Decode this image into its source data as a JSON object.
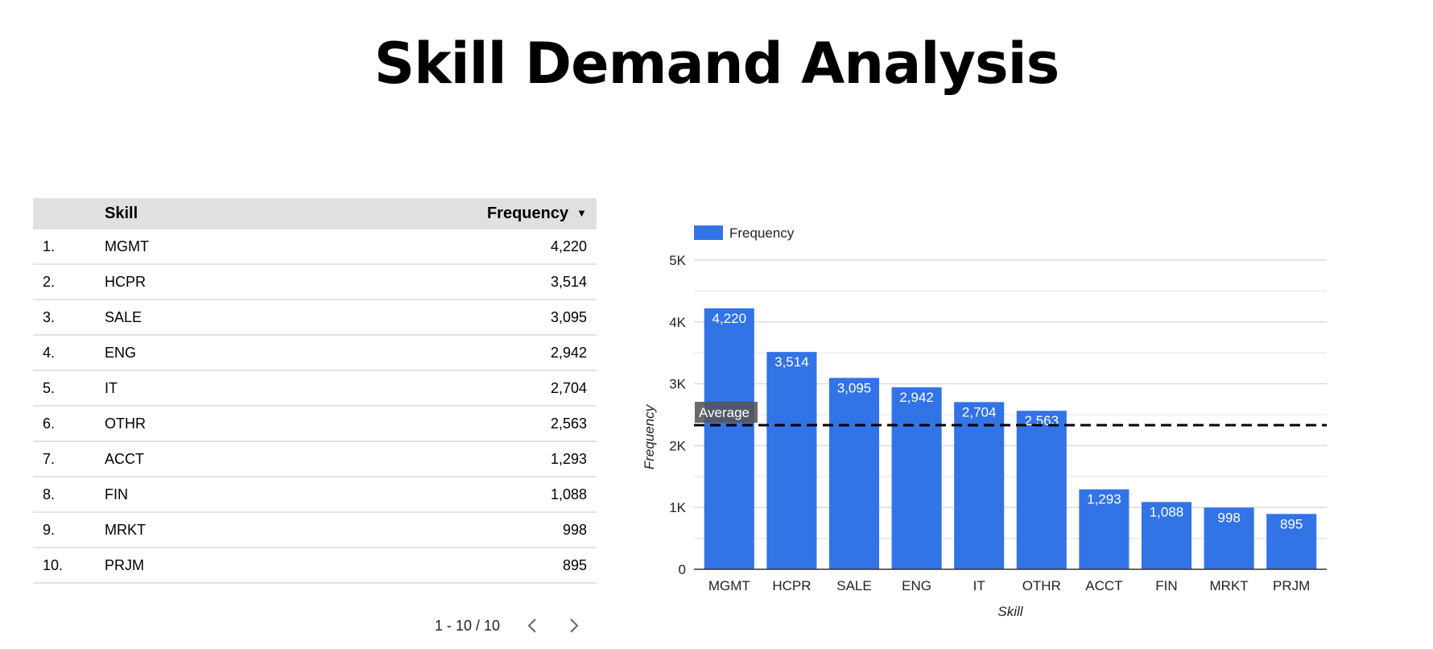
{
  "title": "Skill Demand Analysis",
  "table": {
    "headers": {
      "skill": "Skill",
      "frequency": "Frequency"
    },
    "rows": [
      {
        "num": "1.",
        "skill": "MGMT",
        "frequency": "4,220"
      },
      {
        "num": "2.",
        "skill": "HCPR",
        "frequency": "3,514"
      },
      {
        "num": "3.",
        "skill": "SALE",
        "frequency": "3,095"
      },
      {
        "num": "4.",
        "skill": "ENG",
        "frequency": "2,942"
      },
      {
        "num": "5.",
        "skill": "IT",
        "frequency": "2,704"
      },
      {
        "num": "6.",
        "skill": "OTHR",
        "frequency": "2,563"
      },
      {
        "num": "7.",
        "skill": "ACCT",
        "frequency": "1,293"
      },
      {
        "num": "8.",
        "skill": "FIN",
        "frequency": "1,088"
      },
      {
        "num": "9.",
        "skill": "MRKT",
        "frequency": "998"
      },
      {
        "num": "10.",
        "skill": "PRJM",
        "frequency": "895"
      }
    ],
    "pagination": "1 - 10 / 10"
  },
  "chart_data": {
    "type": "bar",
    "categories": [
      "MGMT",
      "HCPR",
      "SALE",
      "ENG",
      "IT",
      "OTHR",
      "ACCT",
      "FIN",
      "MRKT",
      "PRJM"
    ],
    "series": [
      {
        "name": "Frequency",
        "values": [
          4220,
          3514,
          3095,
          2942,
          2704,
          2563,
          1293,
          1088,
          998,
          895
        ],
        "color": "#3273e6"
      }
    ],
    "data_labels": [
      "4,220",
      "3,514",
      "3,095",
      "2,942",
      "2,704",
      "2,563",
      "1,293",
      "1,088",
      "998",
      "895"
    ],
    "xlabel": "Skill",
    "ylabel": "Frequency",
    "ylim": [
      0,
      5000
    ],
    "yticks": [
      0,
      1000,
      2000,
      3000,
      4000,
      5000
    ],
    "ytick_labels": [
      "0",
      "1K",
      "2K",
      "3K",
      "4K",
      "5K"
    ],
    "minor_gridlines": [
      500,
      1500,
      2500,
      3500,
      4500
    ],
    "reference_line": {
      "label": "Average",
      "value": 2331,
      "style": "dashed",
      "color": "#000000"
    },
    "legend": {
      "position": "top-left",
      "label": "Frequency"
    },
    "grid": true
  }
}
